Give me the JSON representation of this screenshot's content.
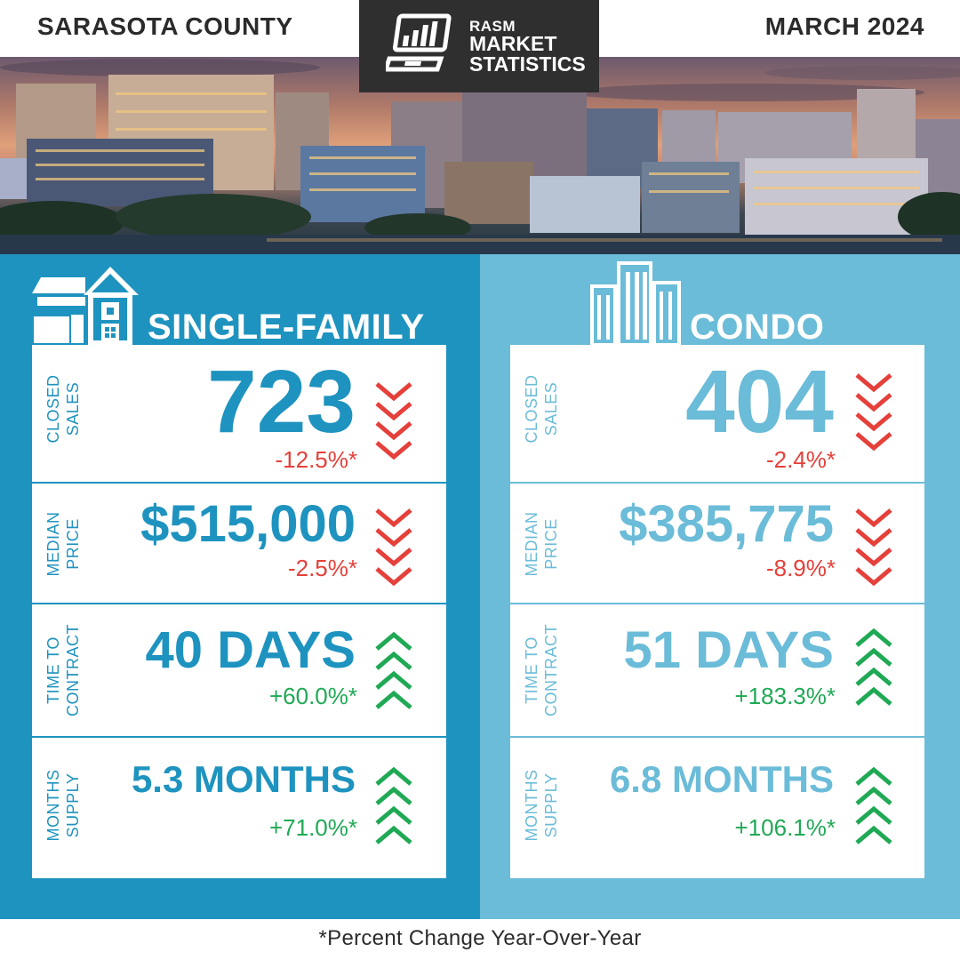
{
  "header": {
    "county": "SARASOTA COUNTY",
    "period": "MARCH 2024",
    "logo": {
      "line1": "RASM",
      "line2": "MARKET",
      "line3": "STATISTICS",
      "icon": "laptop-chart-icon"
    }
  },
  "colors": {
    "single_family": "#1e93bf",
    "condo": "#6bbcd8",
    "down": "#e5403a",
    "up": "#1fa955"
  },
  "single_family": {
    "title": "SINGLE-FAMILY",
    "icon": "house-icon",
    "metrics": [
      {
        "label_top": "CLOSED",
        "label_bottom": "SALES",
        "value": "723",
        "change": "-12.5%*",
        "direction": "down"
      },
      {
        "label_top": "MEDIAN",
        "label_bottom": "PRICE",
        "value": "$515,000",
        "change": "-2.5%*",
        "direction": "down"
      },
      {
        "label_top": "TIME TO",
        "label_bottom": "CONTRACT",
        "value": "40 DAYS",
        "change": "+60.0%*",
        "direction": "up"
      },
      {
        "label_top": "MONTHS",
        "label_bottom": "SUPPLY",
        "value": "5.3 MONTHS",
        "change": "+71.0%*",
        "direction": "up"
      }
    ]
  },
  "condo": {
    "title": "CONDO",
    "icon": "condo-building-icon",
    "metrics": [
      {
        "label_top": "CLOSED",
        "label_bottom": "SALES",
        "value": "404",
        "change": "-2.4%*",
        "direction": "down"
      },
      {
        "label_top": "MEDIAN",
        "label_bottom": "PRICE",
        "value": "$385,775",
        "change": "-8.9%*",
        "direction": "down"
      },
      {
        "label_top": "TIME TO",
        "label_bottom": "CONTRACT",
        "value": "51 DAYS",
        "change": "+183.3%*",
        "direction": "up"
      },
      {
        "label_top": "MONTHS",
        "label_bottom": "SUPPLY",
        "value": "6.8 MONTHS",
        "change": "+106.1%*",
        "direction": "up"
      }
    ]
  },
  "footer": "*Percent Change Year-Over-Year"
}
